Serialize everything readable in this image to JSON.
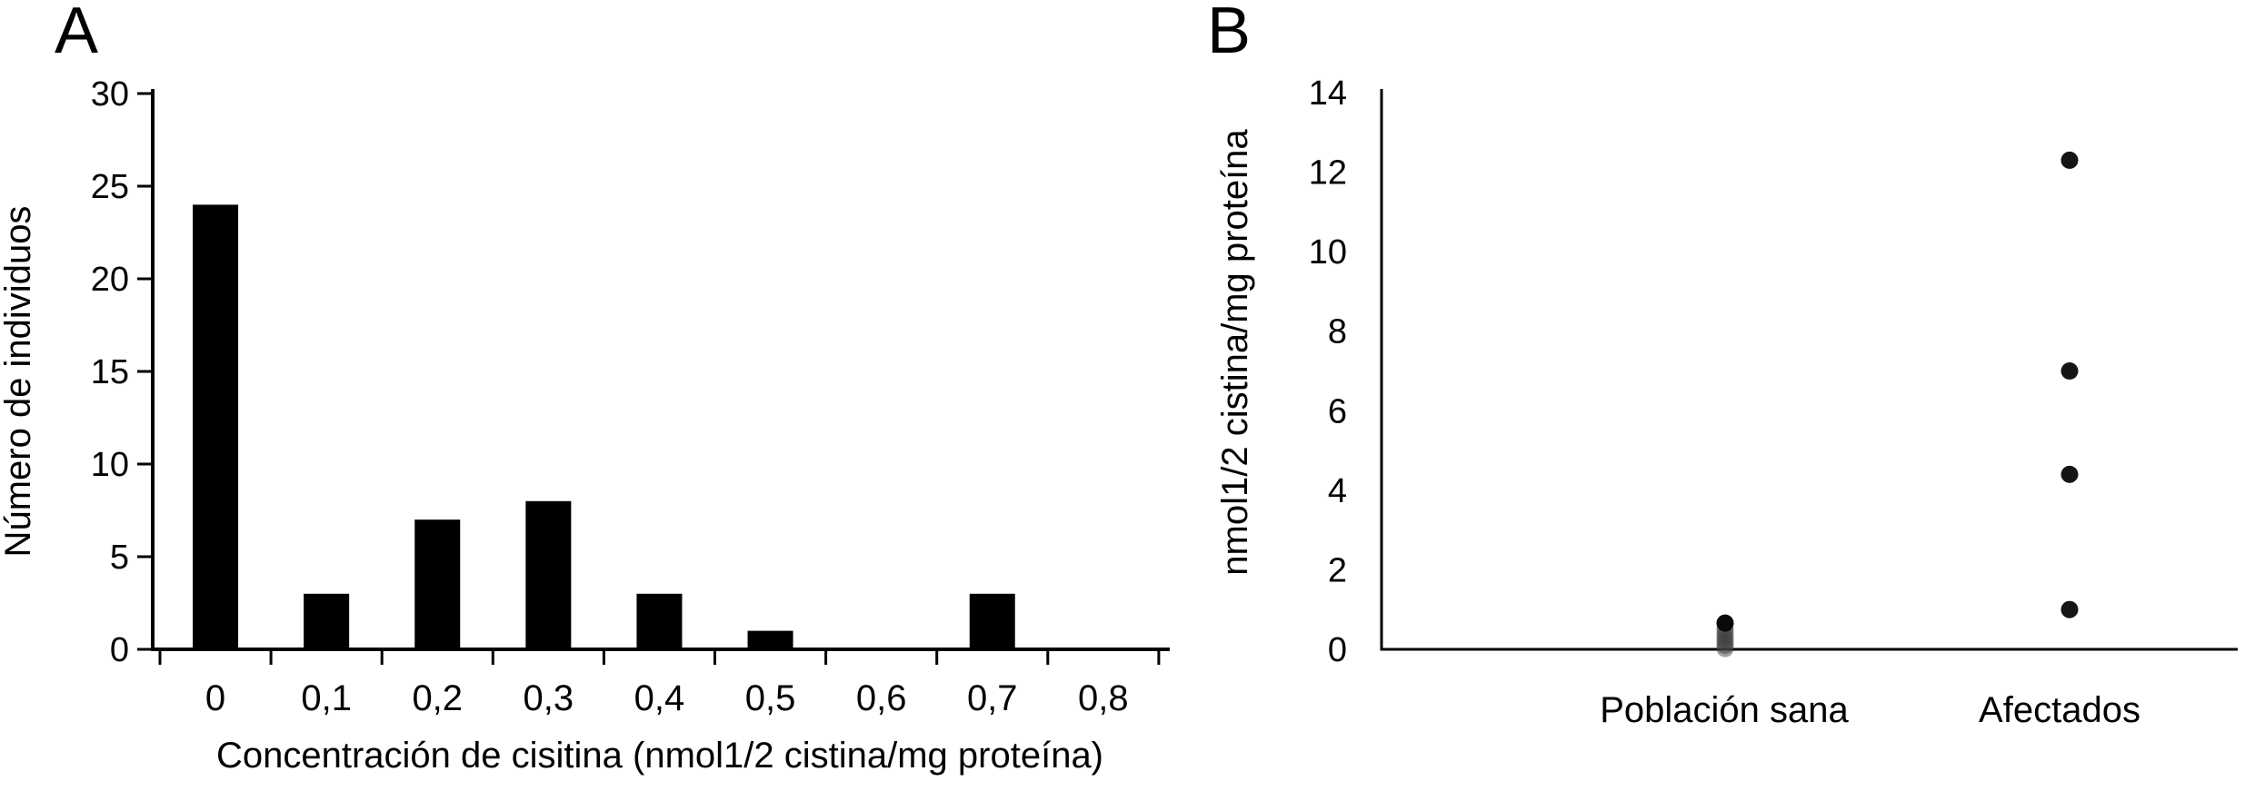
{
  "page": {
    "background": "#ffffff",
    "ink": "#000000"
  },
  "chart_data": [
    {
      "type": "bar",
      "panel_label": "A",
      "title": "",
      "xlabel": "Concentración de cisitina (nmol1/2 cistina/mg proteína)",
      "ylabel": "Número de individuos",
      "categories": [
        "0",
        "0,1",
        "0,2",
        "0,3",
        "0,4",
        "0,5",
        "0,6",
        "0,7",
        "0,8"
      ],
      "values": [
        24,
        3,
        7,
        8,
        3,
        1,
        0,
        3,
        0
      ],
      "yticks": [
        0,
        5,
        10,
        15,
        20,
        25,
        30
      ],
      "ylim": [
        0,
        30
      ],
      "bar_color": "#000000",
      "grid": false,
      "legend": false
    },
    {
      "type": "scatter",
      "panel_label": "B",
      "title": "",
      "xlabel": "",
      "ylabel": "nmol1/2 cistina/mg proteína",
      "categories": [
        "Población sana",
        "Afectados"
      ],
      "series": [
        {
          "name": "Población sana",
          "values": [
            0.02,
            0.1,
            0.18,
            0.26,
            0.34,
            0.43,
            0.52,
            0.66
          ]
        },
        {
          "name": "Afectados",
          "values": [
            1.0,
            4.4,
            7.0,
            12.3
          ]
        }
      ],
      "yticks": [
        0,
        2,
        4,
        6,
        8,
        10,
        12,
        14
      ],
      "ylim": [
        0,
        14
      ],
      "point_color": "#151515",
      "grid": false,
      "legend": false
    }
  ]
}
